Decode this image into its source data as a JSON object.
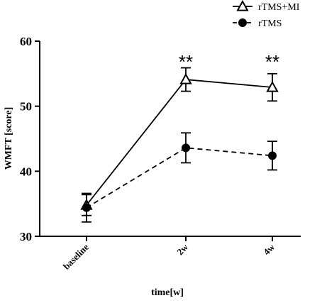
{
  "chart_data": {
    "type": "line",
    "xlabel": "time[w]",
    "ylabel": "WMFT [score]",
    "categories": [
      "baseline",
      "2w",
      "4w"
    ],
    "ylim": [
      30,
      60
    ],
    "yticks": [
      30,
      40,
      50,
      60
    ],
    "grid": false,
    "legend_position": "top-right",
    "series": [
      {
        "name": "rTMS+MI",
        "marker": "open-triangle",
        "line_style": "solid",
        "values": [
          34.8,
          54.1,
          52.9
        ],
        "error": [
          1.6,
          1.8,
          2.1
        ]
      },
      {
        "name": "rTMS",
        "marker": "filled-circle",
        "line_style": "dashed",
        "values": [
          34.4,
          43.6,
          42.4
        ],
        "error": [
          2.2,
          2.3,
          2.2
        ]
      }
    ],
    "annotations": [
      {
        "category": "2w",
        "text": "**"
      },
      {
        "category": "4w",
        "text": "**"
      }
    ]
  }
}
